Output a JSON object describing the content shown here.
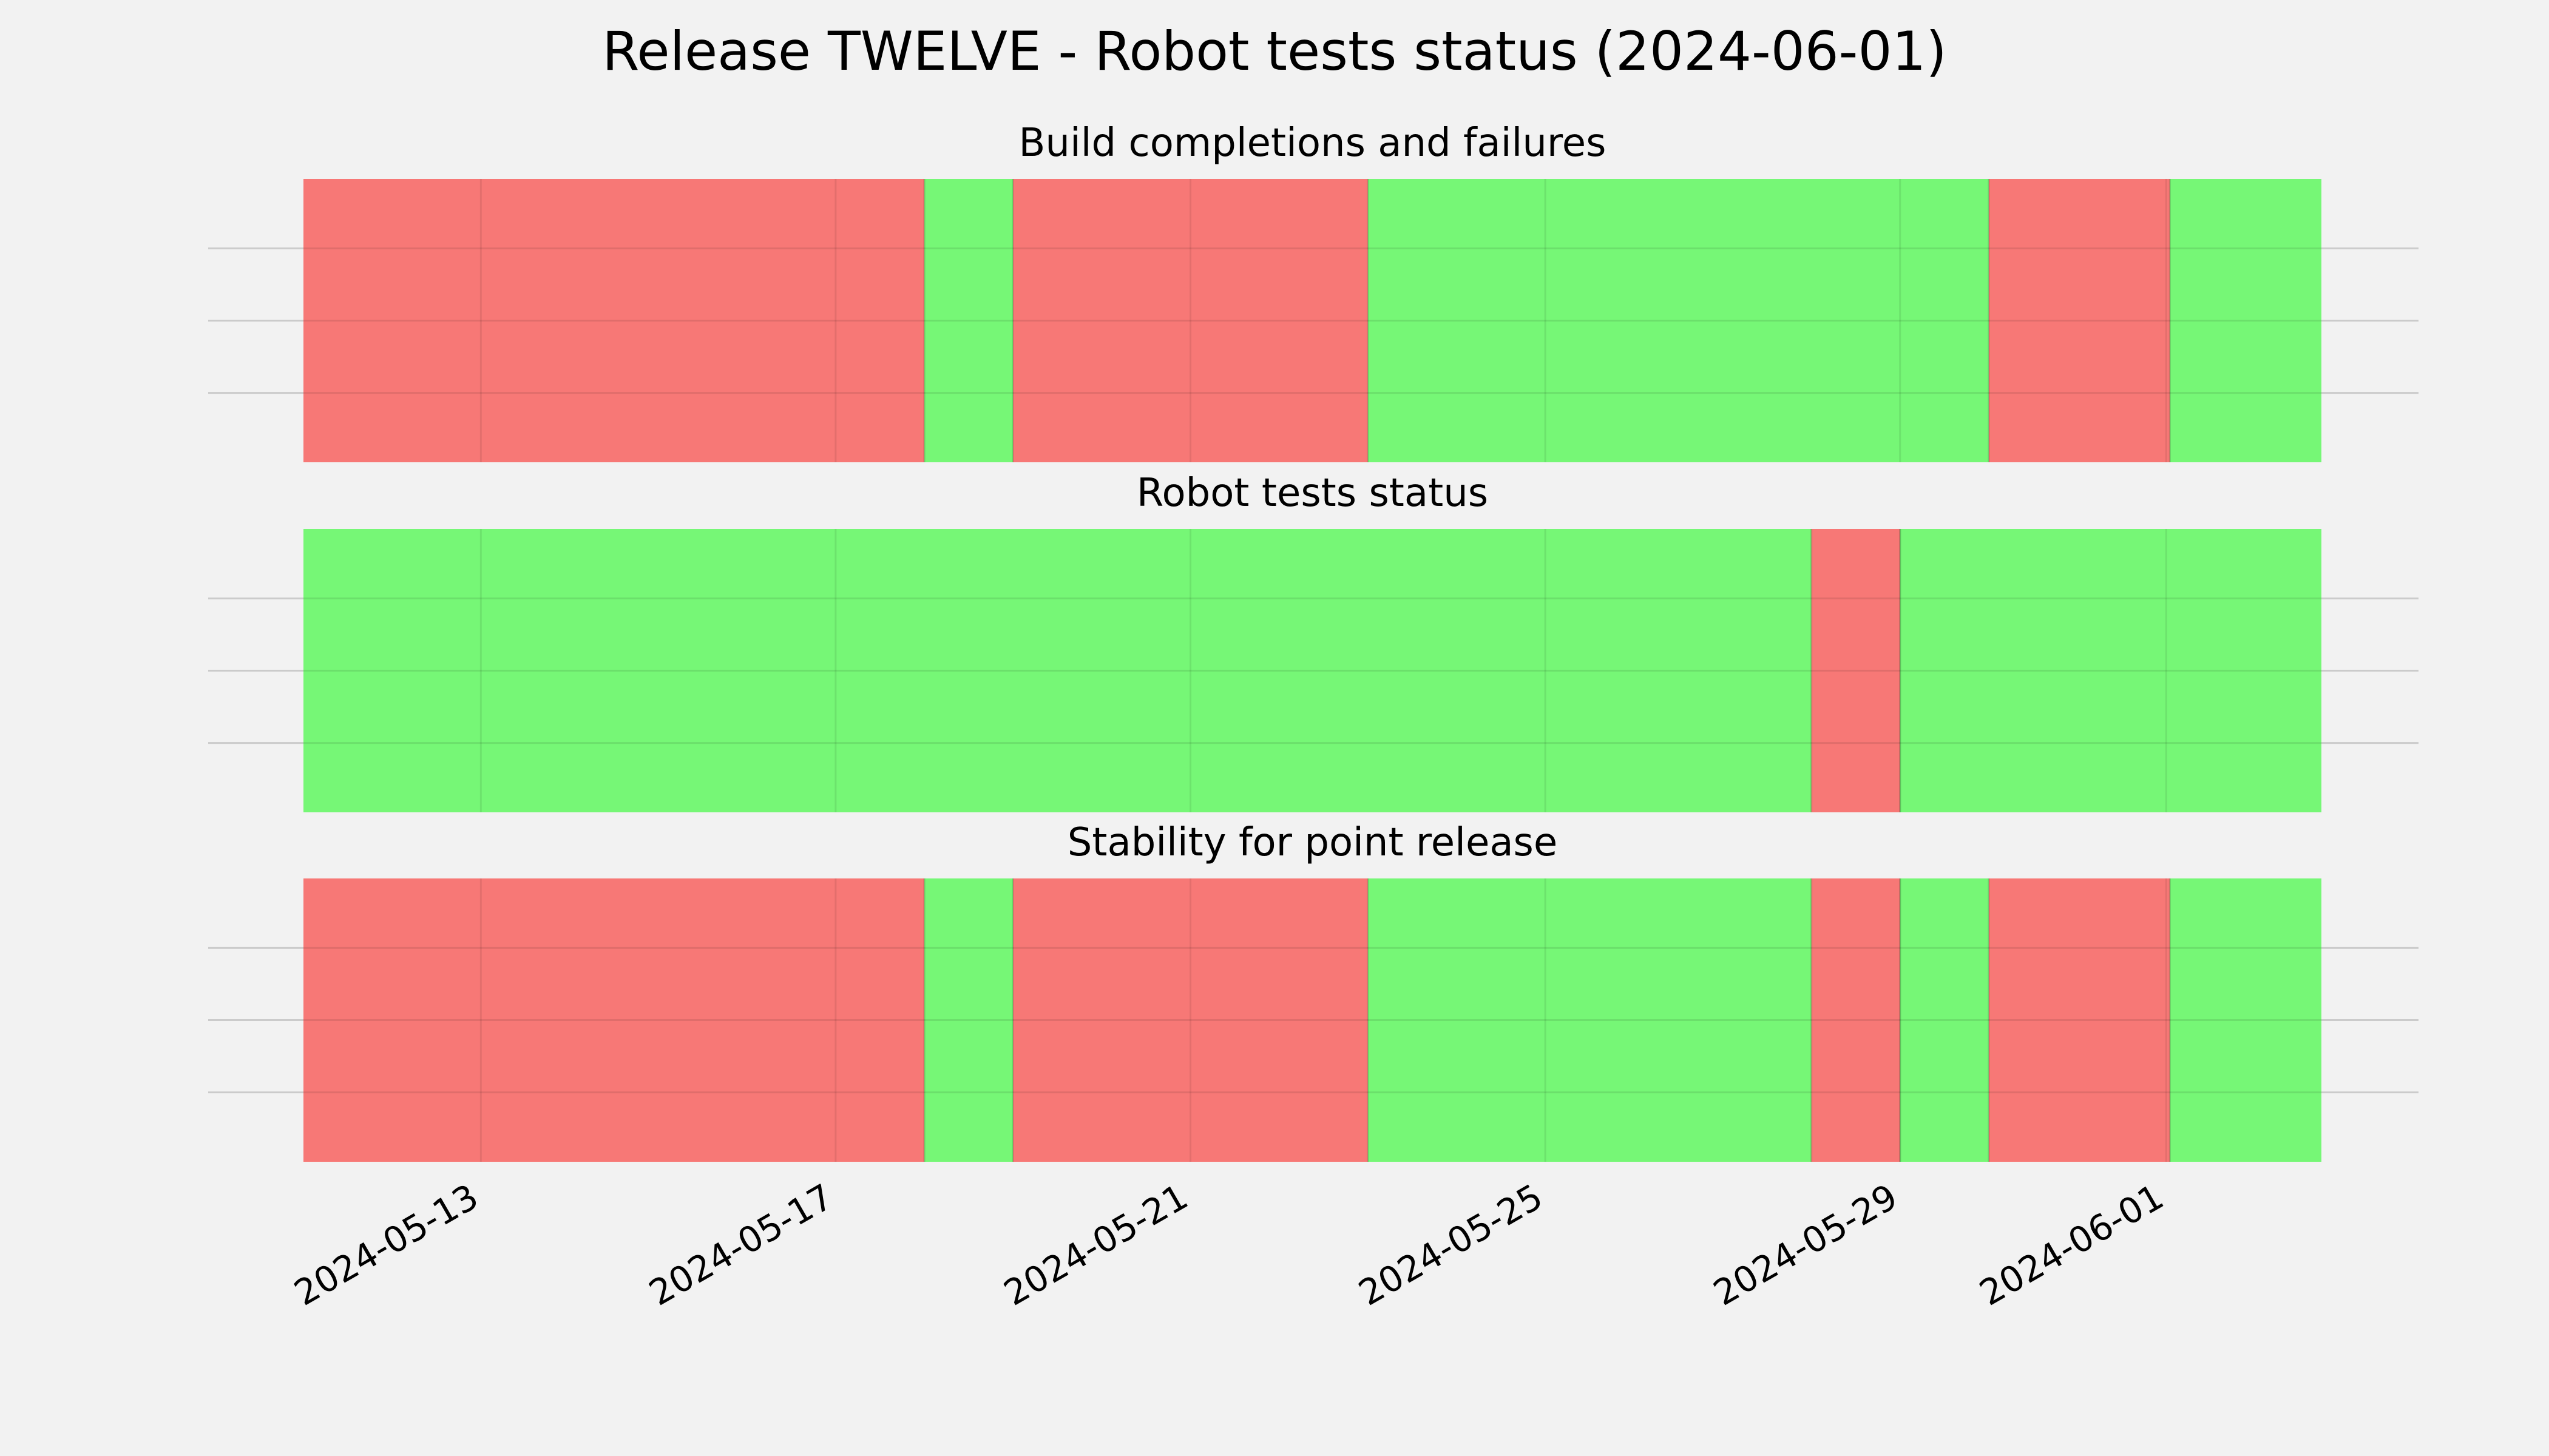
{
  "title": "Release TWELVE - Robot tests status (2024-06-01)",
  "colors": {
    "background": "#f2f2f2",
    "pass": "#76f776",
    "fail": "#f77876",
    "grid": "#cbcbcb"
  },
  "chart_data": {
    "type": "timeline",
    "x_range": [
      "2024-05-11",
      "2024-06-02 18:00"
    ],
    "x_ticks": [
      "2024-05-13",
      "2024-05-17",
      "2024-05-21",
      "2024-05-25",
      "2024-05-29",
      "2024-06-01"
    ],
    "grid": true,
    "panels": [
      {
        "title": "Build completions and failures",
        "segments": [
          {
            "start": "2024-05-11",
            "end": "2024-05-18",
            "status": "fail"
          },
          {
            "start": "2024-05-18",
            "end": "2024-05-19",
            "status": "pass"
          },
          {
            "start": "2024-05-19",
            "end": "2024-05-23",
            "status": "fail"
          },
          {
            "start": "2024-05-23",
            "end": "2024-05-30",
            "status": "pass"
          },
          {
            "start": "2024-05-30",
            "end": "2024-06-01 01:00",
            "status": "fail"
          },
          {
            "start": "2024-06-01 01:00",
            "end": "2024-06-02 18:00",
            "status": "pass"
          }
        ]
      },
      {
        "title": "Robot tests status",
        "segments": [
          {
            "start": "2024-05-11",
            "end": "2024-05-28",
            "status": "pass"
          },
          {
            "start": "2024-05-28",
            "end": "2024-05-29",
            "status": "fail"
          },
          {
            "start": "2024-05-29",
            "end": "2024-06-02 18:00",
            "status": "pass"
          }
        ]
      },
      {
        "title": "Stability for point release",
        "segments": [
          {
            "start": "2024-05-11",
            "end": "2024-05-18",
            "status": "fail"
          },
          {
            "start": "2024-05-18",
            "end": "2024-05-19",
            "status": "pass"
          },
          {
            "start": "2024-05-19",
            "end": "2024-05-23",
            "status": "fail"
          },
          {
            "start": "2024-05-23",
            "end": "2024-05-28",
            "status": "pass"
          },
          {
            "start": "2024-05-28",
            "end": "2024-05-29",
            "status": "fail"
          },
          {
            "start": "2024-05-29",
            "end": "2024-05-30",
            "status": "pass"
          },
          {
            "start": "2024-05-30",
            "end": "2024-06-01 01:00",
            "status": "fail"
          },
          {
            "start": "2024-06-01 01:00",
            "end": "2024-06-02 18:00",
            "status": "pass"
          }
        ]
      }
    ]
  }
}
